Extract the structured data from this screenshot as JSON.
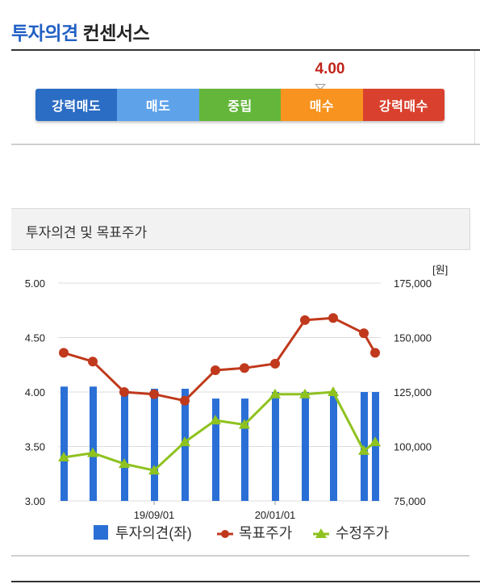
{
  "header": {
    "title_part1": "투자의견",
    "title_part2": "컨센서스"
  },
  "consensus": {
    "value": "4.00",
    "levels": [
      {
        "label": "강력매도",
        "color": "#2b6cc4"
      },
      {
        "label": "매도",
        "color": "#5ea2ea"
      },
      {
        "label": "중립",
        "color": "#63b63a"
      },
      {
        "label": "매수",
        "color": "#f7931e"
      },
      {
        "label": "강력매수",
        "color": "#d9412e"
      }
    ],
    "position": 0.75
  },
  "panel": {
    "title": "투자의견 및 목표주가"
  },
  "chart_data": {
    "type": "bar+line",
    "unit_label": "[원]",
    "left_axis": {
      "range": [
        3.0,
        5.0
      ],
      "ticks": [
        "3.00",
        "3.50",
        "4.00",
        "4.50",
        "5.00"
      ]
    },
    "right_axis": {
      "range": [
        75000,
        175000
      ],
      "ticks": [
        "75,000",
        "100,000",
        "125,000",
        "150,000",
        "175,000"
      ]
    },
    "x_tick_labels": [
      "19/09/01",
      "20/01/01"
    ],
    "grid": true,
    "legend": [
      "투자의견(좌)",
      "목표주가",
      "수정주가"
    ],
    "legend_position": "bottom",
    "series": [
      {
        "name": "투자의견(좌)",
        "kind": "bar",
        "axis": "left",
        "color": "#2a6fd6",
        "values": [
          4.05,
          4.05,
          4.0,
          4.03,
          4.03,
          3.94,
          3.94,
          4.0,
          4.0,
          4.0,
          4.0,
          4.0
        ]
      },
      {
        "name": "목표주가",
        "kind": "line",
        "axis": "right",
        "color": "#c0391c",
        "values": [
          143000,
          139000,
          125000,
          124000,
          121000,
          135000,
          136000,
          138000,
          158000,
          159000,
          152000,
          143000
        ]
      },
      {
        "name": "수정주가",
        "kind": "line",
        "axis": "right",
        "color": "#8fc21f",
        "values": [
          95000,
          97000,
          92000,
          89000,
          102000,
          112000,
          110000,
          124000,
          124000,
          125000,
          98000,
          102000
        ]
      }
    ]
  }
}
